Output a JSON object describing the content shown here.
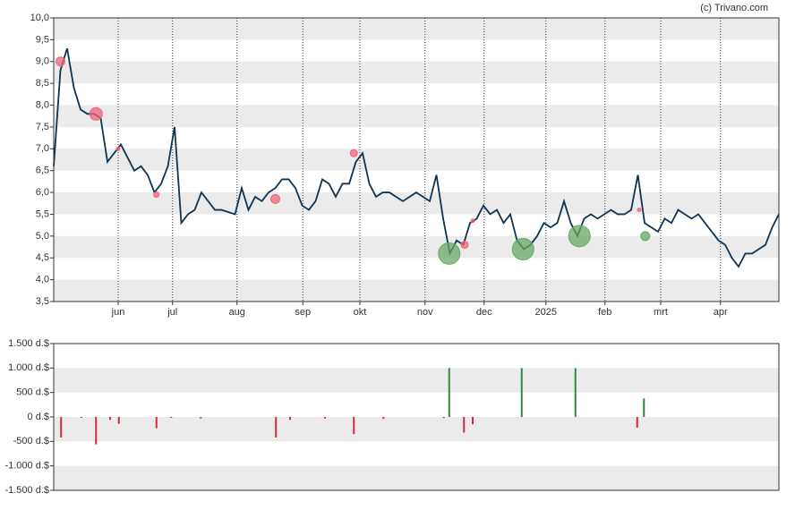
{
  "credit": "(c) Trivano.com",
  "chart_data": [
    {
      "type": "line",
      "color": "#0f3352",
      "line_width": 1.8,
      "values": [
        6.6,
        8.8,
        9.3,
        8.4,
        7.9,
        7.8,
        7.8,
        7.7,
        6.7,
        6.9,
        7.1,
        6.8,
        6.5,
        6.6,
        6.4,
        6.0,
        6.2,
        6.6,
        7.5,
        5.3,
        5.5,
        5.6,
        6.0,
        5.8,
        5.6,
        5.6,
        5.55,
        5.5,
        6.1,
        5.6,
        5.9,
        5.8,
        6.0,
        6.1,
        6.3,
        6.3,
        6.1,
        5.7,
        5.6,
        5.8,
        6.3,
        6.2,
        5.9,
        6.2,
        6.2,
        6.7,
        6.9,
        6.2,
        5.9,
        6.0,
        6.0,
        5.9,
        5.8,
        5.9,
        6.0,
        5.9,
        5.8,
        6.4,
        5.4,
        4.6,
        4.9,
        4.8,
        5.3,
        5.4,
        5.7,
        5.5,
        5.6,
        5.3,
        5.5,
        4.9,
        4.7,
        4.8,
        5.0,
        5.3,
        5.2,
        5.3,
        5.8,
        5.3,
        5.0,
        5.4,
        5.5,
        5.4,
        5.5,
        5.6,
        5.5,
        5.5,
        5.6,
        6.4,
        5.3,
        5.2,
        5.1,
        5.4,
        5.3,
        5.6,
        5.5,
        5.4,
        5.5,
        5.3,
        5.1,
        4.9,
        4.8,
        4.5,
        4.3,
        4.6,
        4.6,
        4.7,
        4.8,
        5.2,
        5.5
      ],
      "xlim": [
        0,
        108
      ],
      "xticks": [
        {
          "value": 9.6,
          "label": "jun"
        },
        {
          "value": 17.7,
          "label": "jul"
        },
        {
          "value": 27.3,
          "label": "aug"
        },
        {
          "value": 37.1,
          "label": "sep"
        },
        {
          "value": 45.6,
          "label": "okt"
        },
        {
          "value": 55.3,
          "label": "nov"
        },
        {
          "value": 64.1,
          "label": "dec"
        },
        {
          "value": 73.3,
          "label": "2025"
        },
        {
          "value": 82.1,
          "label": "feb"
        },
        {
          "value": 90.4,
          "label": "mrt"
        },
        {
          "value": 99.3,
          "label": "apr"
        }
      ],
      "ylim": [
        3.5,
        10
      ],
      "yticks": [
        {
          "value": 3.5,
          "label": "3,5"
        },
        {
          "value": 4,
          "label": "4,0"
        },
        {
          "value": 4.5,
          "label": "4,5"
        },
        {
          "value": 5,
          "label": "5,0"
        },
        {
          "value": 5.5,
          "label": "5,5"
        },
        {
          "value": 6,
          "label": "6,0"
        },
        {
          "value": 6.5,
          "label": "6,5"
        },
        {
          "value": 7,
          "label": "7,0"
        },
        {
          "value": 7.5,
          "label": "7,5"
        },
        {
          "value": 8,
          "label": "8,0"
        },
        {
          "value": 8.5,
          "label": "8,5"
        },
        {
          "value": 9,
          "label": "9,0"
        },
        {
          "value": 9.5,
          "label": "9,5"
        },
        {
          "value": 10,
          "label": "10,0"
        }
      ],
      "band_offset": 1,
      "markers": {
        "x": [
          1,
          6.3,
          15.3,
          33,
          44.7,
          61.2,
          62.4,
          87.2,
          9.6,
          58.9,
          69.9,
          78.3,
          88.1
        ],
        "y": [
          9.0,
          7.8,
          5.95,
          5.85,
          6.9,
          4.8,
          5.35,
          5.6,
          7.0,
          4.6,
          4.7,
          5.0,
          5.0
        ],
        "size": [
          5,
          7,
          3,
          5,
          4,
          4,
          2,
          2,
          2,
          12,
          12,
          12,
          5
        ],
        "color": [
          "#ee6677",
          "#ee6677",
          "#ee6677",
          "#ee6677",
          "#ee6677",
          "#ee6677",
          "#ee6677",
          "#ee6677",
          "#ee6677",
          "#66aa66",
          "#66aa66",
          "#66aa66",
          "#66aa66"
        ]
      }
    },
    {
      "type": "bar",
      "colors": {
        "positive": "#2e8b3e",
        "negative": "#d6283c"
      },
      "x": [
        1.1,
        4.1,
        6.3,
        8.4,
        9.7,
        15.3,
        17.5,
        21.9,
        33.1,
        35.2,
        40.4,
        44.7,
        49.1,
        58.1,
        58.9,
        61.1,
        62.4,
        69.7,
        77.7,
        86.9,
        87.9
      ],
      "values": [
        -420,
        -20,
        -560,
        -60,
        -140,
        -230,
        -20,
        -30,
        -420,
        -60,
        -30,
        -350,
        -40,
        -20,
        1000,
        -320,
        -150,
        1000,
        1000,
        -220,
        380
      ],
      "xlim": [
        0,
        108
      ],
      "ylim": [
        -1500,
        1500
      ],
      "yticks": [
        {
          "value": -1500,
          "label": "-1.500 d.$"
        },
        {
          "value": -1000,
          "label": "-1.000 d.$"
        },
        {
          "value": -500,
          "label": "-500 d.$"
        },
        {
          "value": 0,
          "label": "0 d.$"
        },
        {
          "value": 500,
          "label": "500 d.$"
        },
        {
          "value": 1000,
          "label": "1.000 d.$"
        },
        {
          "value": 1500,
          "label": "1.500 d.$"
        }
      ],
      "band_offset": 0
    }
  ]
}
